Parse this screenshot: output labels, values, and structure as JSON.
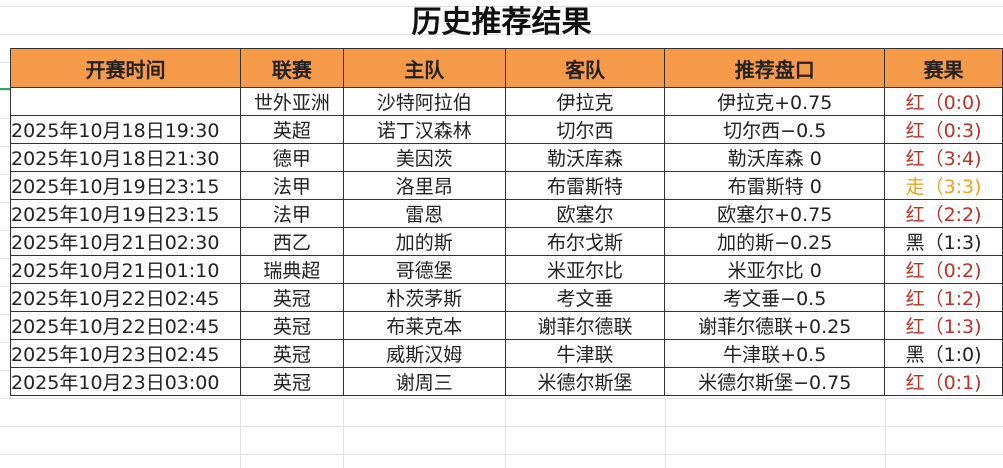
{
  "title": "历史推荐结果",
  "headers": [
    "开赛时间",
    "联赛",
    "主队",
    "客队",
    "推荐盘口",
    "赛果"
  ],
  "colors": {
    "header_bg": "#f59a48",
    "red": "#b83227",
    "draw": "#f0a11e",
    "black": "#222222"
  },
  "rows": [
    {
      "time": "",
      "league": "世外亚洲",
      "home": "沙特阿拉伯",
      "away": "伊拉克",
      "pick": "伊拉克+0.75",
      "result": "红（0:0)",
      "status": "red"
    },
    {
      "time": "2025年10月18日19:30",
      "league": "英超",
      "home": "诺丁汉森林",
      "away": "切尔西",
      "pick": "切尔西−0.5",
      "result": "红（0:3)",
      "status": "red"
    },
    {
      "time": "2025年10月18日21:30",
      "league": "德甲",
      "home": "美因茨",
      "away": "勒沃库森",
      "pick": "勒沃库森 0",
      "result": "红（3:4)",
      "status": "red"
    },
    {
      "time": "2025年10月19日23:15",
      "league": "法甲",
      "home": "洛里昂",
      "away": "布雷斯特",
      "pick": "布雷斯特 0",
      "result": "走（3:3)",
      "status": "orange"
    },
    {
      "time": "2025年10月19日23:15",
      "league": "法甲",
      "home": "雷恩",
      "away": "欧塞尔",
      "pick": "欧塞尔+0.75",
      "result": "红（2:2)",
      "status": "red"
    },
    {
      "time": "2025年10月21日02:30",
      "league": "西乙",
      "home": "加的斯",
      "away": "布尔戈斯",
      "pick": "加的斯−0.25",
      "result": "黑（1:3)",
      "status": "black"
    },
    {
      "time": "2025年10月21日01:10",
      "league": "瑞典超",
      "home": "哥德堡",
      "away": "米亚尔比",
      "pick": "米亚尔比 0",
      "result": "红（0:2)",
      "status": "red"
    },
    {
      "time": "2025年10月22日02:45",
      "league": "英冠",
      "home": "朴茨茅斯",
      "away": "考文垂",
      "pick": "考文垂−0.5",
      "result": "红（1:2)",
      "status": "red"
    },
    {
      "time": "2025年10月22日02:45",
      "league": "英冠",
      "home": "布莱克本",
      "away": "谢菲尔德联",
      "pick": "谢菲尔德联+0.25",
      "result": "红（1:3)",
      "status": "red"
    },
    {
      "time": "2025年10月23日02:45",
      "league": "英冠",
      "home": "威斯汉姆",
      "away": "牛津联",
      "pick": "牛津联+0.5",
      "result": "黑（1:0)",
      "status": "black"
    },
    {
      "time": "2025年10月23日03:00",
      "league": "英冠",
      "home": "谢周三",
      "away": "米德尔斯堡",
      "pick": "米德尔斯堡−0.75",
      "result": "红（0:1)",
      "status": "red"
    }
  ]
}
